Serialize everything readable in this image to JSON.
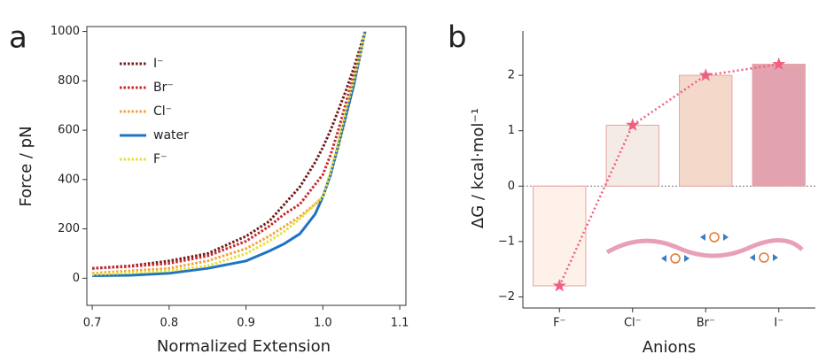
{
  "chart_data": [
    {
      "type": "line",
      "panel": "a",
      "xlabel": "Normalized Extension",
      "ylabel": "Force / pN",
      "x": [
        0.7,
        0.75,
        0.8,
        0.85,
        0.9,
        0.93,
        0.95,
        0.97,
        0.99,
        1.0,
        1.01,
        1.02,
        1.03,
        1.04,
        1.05,
        1.055
      ],
      "series": [
        {
          "name": "I⁻",
          "color": "#6e1c1c",
          "style": "dotted",
          "values": [
            40,
            50,
            70,
            100,
            170,
            230,
            300,
            370,
            470,
            530,
            600,
            680,
            760,
            850,
            950,
            1000
          ]
        },
        {
          "name": "Br⁻",
          "color": "#c8282e",
          "style": "dotted",
          "values": [
            40,
            48,
            60,
            90,
            150,
            210,
            260,
            300,
            380,
            420,
            500,
            600,
            710,
            820,
            940,
            1000
          ]
        },
        {
          "name": "Cl⁻",
          "color": "#f2a43a",
          "style": "dotted",
          "values": [
            20,
            30,
            40,
            70,
            120,
            170,
            210,
            250,
            300,
            330,
            420,
            530,
            650,
            780,
            920,
            1000
          ]
        },
        {
          "name": "water",
          "color": "#1f74c2",
          "style": "solid",
          "values": [
            10,
            12,
            20,
            40,
            70,
            110,
            140,
            180,
            260,
            330,
            420,
            540,
            660,
            780,
            930,
            1000
          ]
        },
        {
          "name": "F⁻",
          "color": "#e8df36",
          "style": "dotted",
          "values": [
            15,
            22,
            30,
            50,
            100,
            150,
            190,
            240,
            300,
            330,
            430,
            550,
            680,
            800,
            930,
            1000
          ]
        }
      ],
      "xlim": [
        0.693,
        1.108
      ],
      "xticks": [
        0.7,
        0.8,
        0.9,
        {
          "value": 1,
          "label": "1.0"
        },
        1.1
      ],
      "ylim": [
        -110,
        1020
      ],
      "yticks": [
        0,
        200,
        400,
        600,
        800,
        1000
      ],
      "legend": "upper left"
    },
    {
      "type": "bar",
      "panel": "b",
      "xlabel": "Anions",
      "ylabel": "ΔG / kcal·mol⁻¹",
      "categories": [
        "F⁻",
        "Cl⁻",
        "Br⁻",
        "I⁻"
      ],
      "values": [
        -1.8,
        1.1,
        2.0,
        2.2
      ],
      "colors": [
        "#fdf1e9",
        "#f5ebe6",
        "#f4d8ca",
        "#e3a2b0"
      ],
      "edge_color": "#e6a4a4",
      "line_color": "#f0607e",
      "ylim": [
        -2.2,
        2.8
      ],
      "yticks": [
        {
          "value": -2,
          "label": "−2"
        },
        {
          "value": -1,
          "label": "−1"
        },
        0,
        1,
        2
      ]
    }
  ]
}
